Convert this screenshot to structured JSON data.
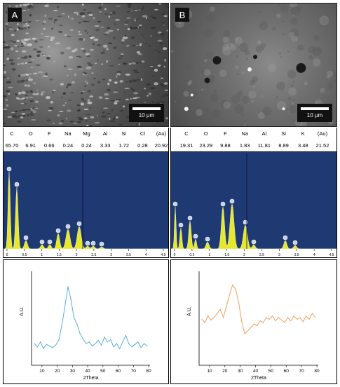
{
  "panels": {
    "left": {
      "letter": "A",
      "scale": "10 μm"
    },
    "right": {
      "letter": "B",
      "scale": "10 μm"
    }
  },
  "edx_left": {
    "elements": [
      "C",
      "O",
      "F",
      "Na",
      "Mg",
      "Al",
      "Si",
      "Cl",
      "(Au)"
    ],
    "values": [
      "65.70",
      "6.91",
      "0.66",
      "0.24",
      "0.24",
      "3.33",
      "1.72",
      "0.28",
      "20.92"
    ]
  },
  "edx_right": {
    "elements": [
      "C",
      "O",
      "F",
      "Na",
      "Al",
      "Si",
      "K",
      "(Au)"
    ],
    "values": [
      "19.31",
      "23.29",
      "9.88",
      "1.83",
      "11.81",
      "8.89",
      "3.48",
      "21.52"
    ]
  },
  "spectrum_ticks": [
    "0",
    "0.5",
    "1",
    "1.5",
    "2",
    "2.5",
    "3",
    "3.5",
    "4",
    "4.5"
  ],
  "colors": {
    "spectrum_bg": "#1f3a73",
    "spectrum_fill": "#e8e82a",
    "xrd_left": "#5aaee0",
    "xrd_right": "#f0a060"
  },
  "chart_data": [
    {
      "type": "line",
      "xlabel": "2Theta",
      "ylabel": "A.U.",
      "xlim": [
        5,
        80
      ],
      "xticks": [
        10,
        20,
        30,
        40,
        50,
        60,
        70,
        80
      ],
      "series": [
        {
          "x": [
            5,
            7,
            9,
            11,
            13,
            15,
            17,
            19,
            21,
            23,
            25,
            27,
            29,
            31,
            33,
            35,
            37,
            39,
            41,
            43,
            45,
            47,
            49,
            51,
            53,
            55,
            57,
            59,
            61,
            63,
            65,
            67,
            69,
            71,
            73,
            75,
            77,
            79
          ],
          "values": [
            0.18,
            0.14,
            0.2,
            0.12,
            0.17,
            0.15,
            0.13,
            0.16,
            0.22,
            0.4,
            0.63,
            0.88,
            0.72,
            0.5,
            0.42,
            0.3,
            0.24,
            0.18,
            0.2,
            0.15,
            0.18,
            0.22,
            0.16,
            0.26,
            0.2,
            0.23,
            0.14,
            0.18,
            0.12,
            0.2,
            0.28,
            0.18,
            0.14,
            0.17,
            0.2,
            0.13,
            0.18,
            0.15
          ]
        }
      ]
    },
    {
      "type": "line",
      "xlabel": "2Theta",
      "ylabel": "A.U.",
      "xlim": [
        5,
        80
      ],
      "xticks": [
        10,
        20,
        30,
        40,
        50,
        60,
        70,
        80
      ],
      "series": [
        {
          "x": [
            5,
            7,
            9,
            11,
            13,
            15,
            17,
            19,
            21,
            23,
            25,
            27,
            29,
            31,
            33,
            35,
            37,
            39,
            41,
            43,
            45,
            47,
            49,
            51,
            53,
            55,
            57,
            59,
            61,
            63,
            65,
            67,
            69,
            71,
            73,
            75,
            77,
            79
          ],
          "values": [
            0.48,
            0.44,
            0.52,
            0.47,
            0.5,
            0.55,
            0.6,
            0.5,
            0.64,
            0.78,
            0.9,
            0.85,
            0.68,
            0.45,
            0.3,
            0.34,
            0.38,
            0.42,
            0.4,
            0.46,
            0.44,
            0.5,
            0.48,
            0.52,
            0.46,
            0.5,
            0.47,
            0.44,
            0.5,
            0.46,
            0.52,
            0.48,
            0.5,
            0.45,
            0.52,
            0.48,
            0.55,
            0.5
          ]
        }
      ]
    }
  ]
}
